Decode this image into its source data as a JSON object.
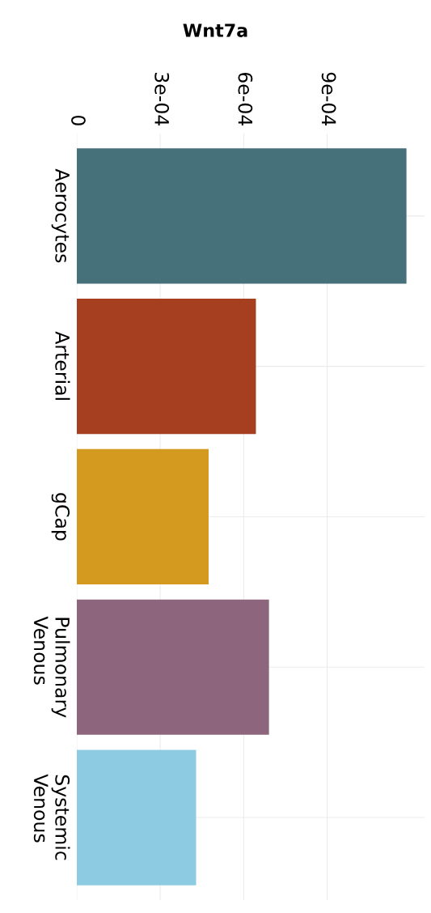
{
  "chart_data": {
    "type": "bar",
    "orientation": "horizontal",
    "title": "Wnt7a",
    "categories": [
      "Aerocytes",
      "Arterial",
      "gCap",
      "Pulmonary\nVenous",
      "Systemic\nVenous"
    ],
    "values": [
      0.001185,
      0.000644,
      0.000474,
      0.000691,
      0.000429
    ],
    "colors": [
      "#47717a",
      "#a53f20",
      "#d39a1f",
      "#8d667e",
      "#8ccbe2"
    ],
    "xlim": [
      0,
      0.00125
    ],
    "xticks": [
      0,
      {
        "value": 0.0003,
        "label": "3e-04"
      },
      {
        "value": 0.0006,
        "label": "6e-04"
      },
      {
        "value": 0.0009,
        "label": "9e-04"
      }
    ],
    "grid": true
  }
}
